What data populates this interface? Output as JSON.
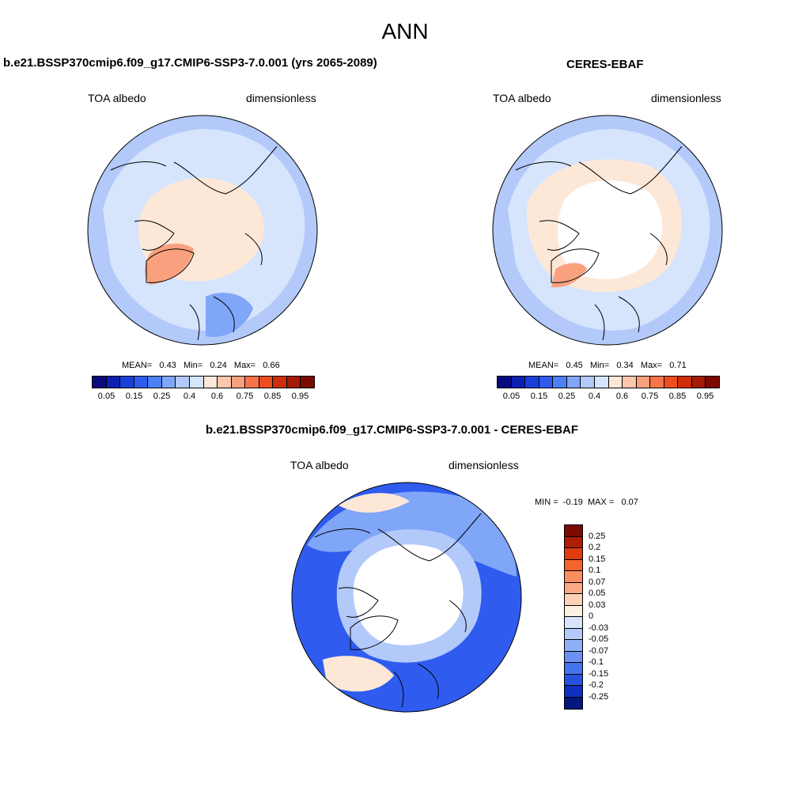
{
  "title": "ANN",
  "panels": [
    {
      "title": "b.e21.BSSP370cmip6.f09_g17.CMIP6-SSP3-7.0.001 (yrs 2065-2089)",
      "left_label": "TOA albedo",
      "right_label": "dimensionless",
      "stats": {
        "mean_label": "MEAN=",
        "mean": "0.43",
        "min_label": "Min=",
        "min": "0.24",
        "max_label": "Max=",
        "max": "0.66"
      }
    },
    {
      "title": "CERES-EBAF",
      "left_label": "TOA albedo",
      "right_label": "dimensionless",
      "stats": {
        "mean_label": "MEAN=",
        "mean": "0.45",
        "min_label": "Min=",
        "min": "0.34",
        "max_label": "Max=",
        "max": "0.71"
      }
    },
    {
      "title": "b.e21.BSSP370cmip6.f09_g17.CMIP6-SSP3-7.0.001 - CERES-EBAF",
      "left_label": "TOA albedo",
      "right_label": "dimensionless",
      "stats": {
        "min_label": "MIN =",
        "min": "-0.19",
        "max_label": "MAX =",
        "max": "0.07"
      }
    }
  ],
  "colorbar_abs": {
    "colors": [
      "#0a0a80",
      "#0c1fb3",
      "#1a3fd6",
      "#2f5cef",
      "#4d7ff5",
      "#80a6f7",
      "#b2c9fa",
      "#d6e4fc",
      "#fde8d8",
      "#fcc7ad",
      "#f9a17f",
      "#f57449",
      "#ee4d1f",
      "#cc2e0a",
      "#a31a05",
      "#7a0a02"
    ],
    "ticks": [
      "0.05",
      "0.15",
      "0.25",
      "0.4",
      "0.6",
      "0.75",
      "0.85",
      "0.95"
    ]
  },
  "colorbar_diff": {
    "colors": [
      "#7a0a02",
      "#b01c04",
      "#e03a0e",
      "#f5642e",
      "#f98e60",
      "#fba984",
      "#fcd1b8",
      "#fdeee2",
      "#d6e4fc",
      "#b2c9fa",
      "#8fb0f7",
      "#6b92f3",
      "#4673ee",
      "#2752e0",
      "#0e2fc0",
      "#06167e"
    ],
    "ticks": [
      "0.25",
      "0.2",
      "0.15",
      "0.1",
      "0.07",
      "0.05",
      "0.03",
      "0",
      "-0.03",
      "-0.05",
      "-0.07",
      "-0.1",
      "-0.15",
      "-0.2",
      "-0.25"
    ]
  },
  "map_colors": {
    "light_blue": "#d6e4fc",
    "mid_blue": "#b2c9fa",
    "blue": "#80a6f7",
    "deep_blue": "#2f5cef",
    "peach": "#fde8d8",
    "salmon": "#f9a17f",
    "white": "#ffffff"
  }
}
